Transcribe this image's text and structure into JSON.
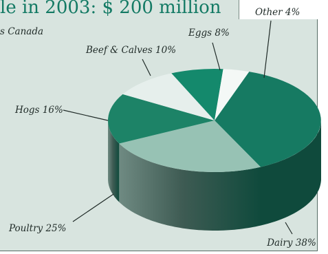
{
  "header": {
    "title": "le in 2003: $ 200 million",
    "source": "s Canada"
  },
  "chart_data": {
    "type": "pie",
    "slices": [
      {
        "label": "Dairy",
        "value": 38,
        "display": "Dairy  38%",
        "color": "#167a62"
      },
      {
        "label": "Poultry",
        "value": 25,
        "display": "Poultry  25%",
        "color": "#97c2b4"
      },
      {
        "label": "Hogs",
        "value": 16,
        "display": "Hogs 16%",
        "color": "#1d8367"
      },
      {
        "label": "Beef & Calves",
        "value": 10,
        "display": "Beef & Calves  10%",
        "color": "#e6efec"
      },
      {
        "label": "Eggs",
        "value": 8,
        "display": "Eggs  8%",
        "color": "#14896c"
      },
      {
        "label": "Other",
        "value": 4,
        "display": "Other  4%",
        "color": "#f4f8f6"
      }
    ]
  }
}
